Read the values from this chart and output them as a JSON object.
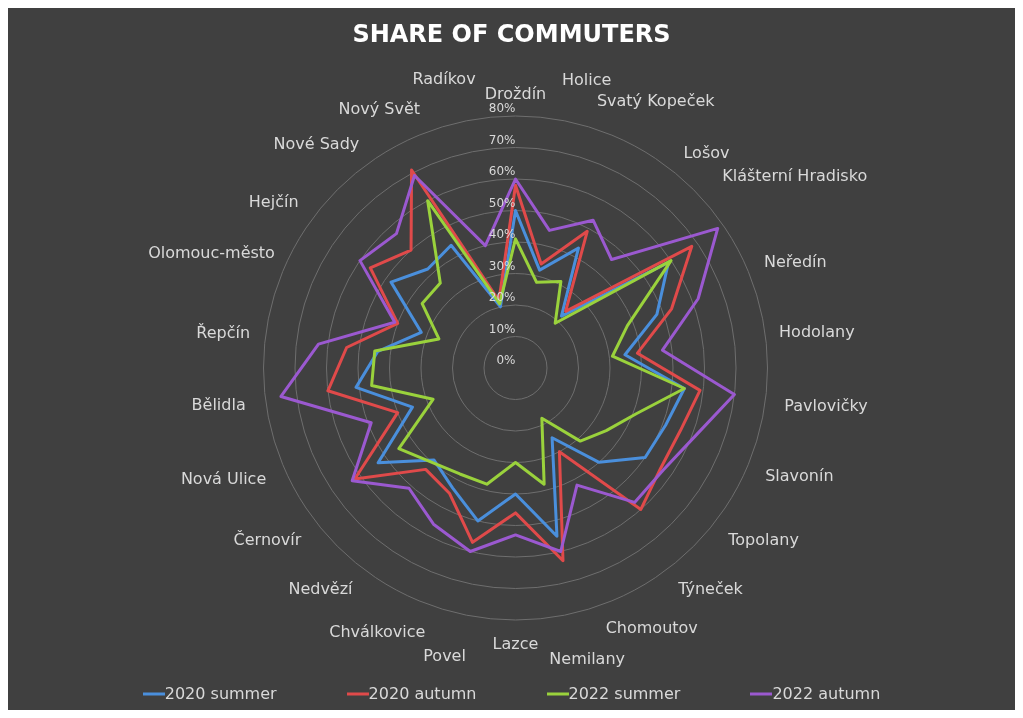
{
  "chart_data": {
    "type": "radar",
    "title": "SHARE OF COMMUTERS",
    "categories": [
      "Droždín",
      "Holice",
      "Svatý Kopeček",
      "Lošov",
      "Klášterní Hradisko",
      "Neředín",
      "Hodolany",
      "Pavlovičky",
      "Slavonín",
      "Topolany",
      "Týneček",
      "Chomoutov",
      "Nemilany",
      "Lazce",
      "Povel",
      "Chválkovice",
      "Nedvězí",
      "Černovír",
      "Nová Ulice",
      "Bělidla",
      "Řepčín",
      "Olomouc-město",
      "Hejčín",
      "Nové Sady",
      "Nový Svět",
      "Radíkov"
    ],
    "series": [
      {
        "name": "2020 summer",
        "color": "#4a8fdc",
        "values": [
          50,
          32,
          43,
          22,
          59,
          48,
          35,
          54,
          51,
          50,
          40,
          25,
          55,
          40,
          50,
          43,
          39,
          53,
          35,
          51,
          44,
          32,
          48,
          42,
          44,
          20
        ]
      },
      {
        "name": "2020 autumn",
        "color": "#e04a4a",
        "values": [
          58,
          34,
          49,
          24,
          68,
          53,
          39,
          59,
          56,
          56,
          60,
          30,
          63,
          46,
          57,
          45,
          43,
          62,
          40,
          60,
          54,
          40,
          56,
          50,
          71,
          22
        ]
      },
      {
        "name": "2022 summer",
        "color": "#9ad23c",
        "values": [
          41,
          28,
          31,
          19,
          60,
          38,
          31,
          54,
          41,
          35,
          31,
          18,
          38,
          30,
          38,
          38,
          40,
          45,
          28,
          46,
          45,
          26,
          36,
          36,
          60,
          21
        ]
      },
      {
        "name": "2022 autumn",
        "color": "#9b59d0",
        "values": [
          60,
          45,
          53,
          46,
          78,
          62,
          47,
          70,
          61,
          57,
          57,
          42,
          60,
          53,
          60,
          56,
          51,
          63,
          49,
          75,
          63,
          41,
          60,
          57,
          69,
          40
        ]
      }
    ],
    "ylim": [
      0,
      80
    ],
    "yticks": [
      {
        "value": 0,
        "label": "0%"
      },
      {
        "value": 10,
        "label": "10%"
      },
      {
        "value": 20,
        "label": "20%"
      },
      {
        "value": 30,
        "label": "30%"
      },
      {
        "value": 40,
        "label": "40%"
      },
      {
        "value": 50,
        "label": "50%"
      },
      {
        "value": 60,
        "label": "60%"
      },
      {
        "value": 70,
        "label": "70%"
      },
      {
        "value": 80,
        "label": "80%"
      }
    ],
    "grid": true,
    "legend": "bottom",
    "marker": "none",
    "line_style": "solid"
  }
}
